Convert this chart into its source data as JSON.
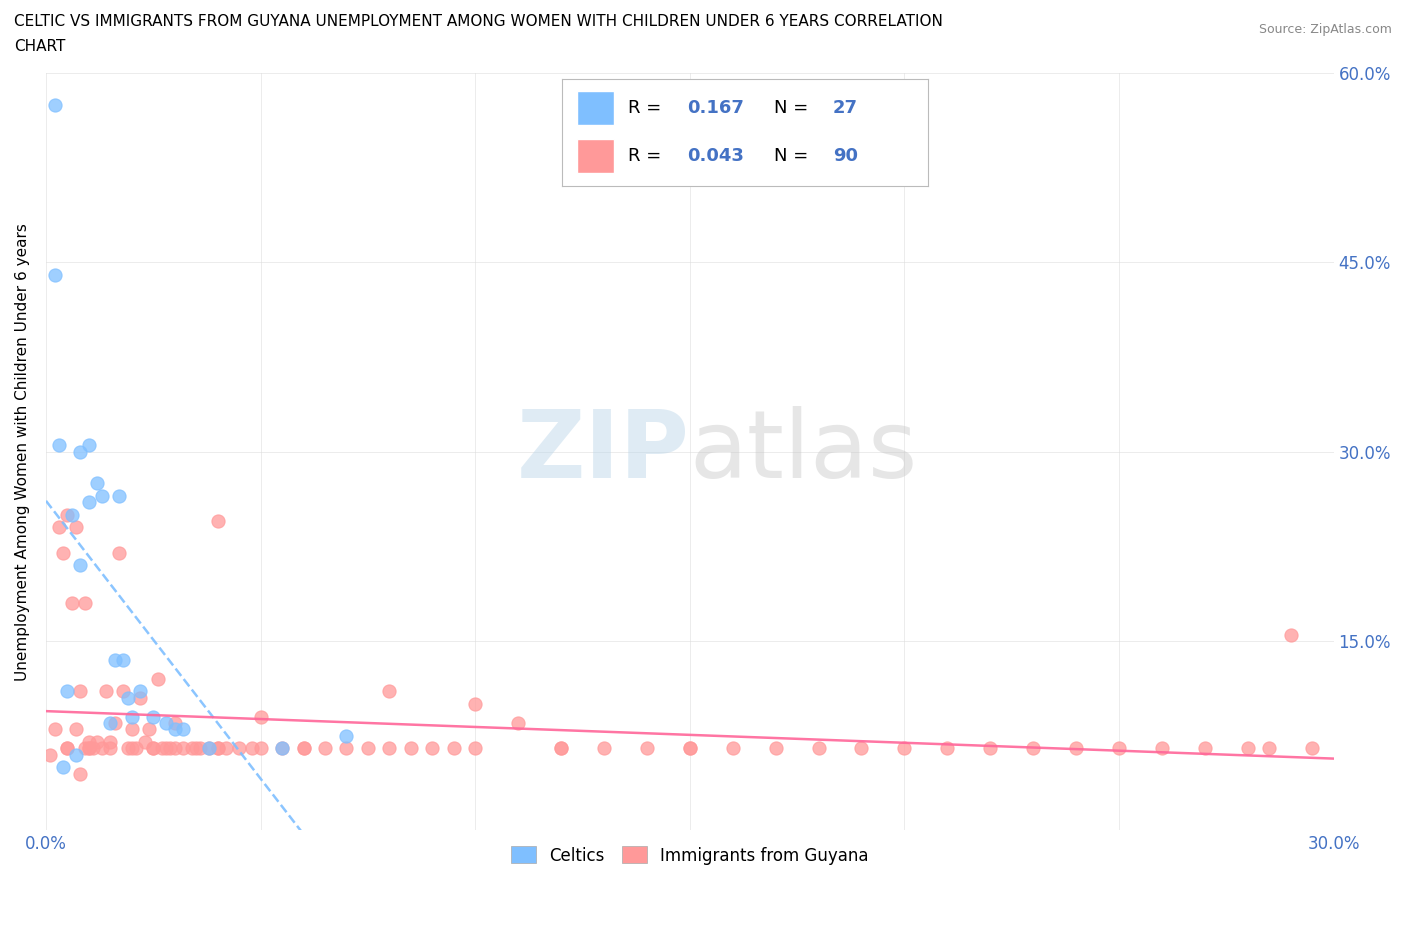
{
  "title_line1": "CELTIC VS IMMIGRANTS FROM GUYANA UNEMPLOYMENT AMONG WOMEN WITH CHILDREN UNDER 6 YEARS CORRELATION",
  "title_line2": "CHART",
  "source": "Source: ZipAtlas.com",
  "ylabel": "Unemployment Among Women with Children Under 6 years",
  "xlim": [
    0.0,
    0.3
  ],
  "ylim": [
    0.0,
    0.6
  ],
  "xticks": [
    0.0,
    0.05,
    0.1,
    0.15,
    0.2,
    0.25,
    0.3
  ],
  "yticks": [
    0.0,
    0.15,
    0.3,
    0.45,
    0.6
  ],
  "celtics_color": "#7fbfff",
  "guyana_color": "#ff9999",
  "trend_blue": "#7fbfff",
  "trend_pink": "#ff6699",
  "celtics_R": "0.167",
  "celtics_N": "27",
  "guyana_R": "0.043",
  "guyana_N": "90",
  "watermark_zip": "ZIP",
  "watermark_atlas": "atlas",
  "celtics_x": [
    0.002,
    0.002,
    0.003,
    0.005,
    0.006,
    0.007,
    0.008,
    0.008,
    0.01,
    0.01,
    0.012,
    0.013,
    0.015,
    0.016,
    0.017,
    0.018,
    0.019,
    0.02,
    0.022,
    0.025,
    0.028,
    0.03,
    0.032,
    0.038,
    0.055,
    0.07,
    0.004
  ],
  "celtics_y": [
    0.575,
    0.44,
    0.305,
    0.11,
    0.25,
    0.06,
    0.21,
    0.3,
    0.26,
    0.305,
    0.275,
    0.265,
    0.085,
    0.135,
    0.265,
    0.135,
    0.105,
    0.09,
    0.11,
    0.09,
    0.085,
    0.08,
    0.08,
    0.065,
    0.065,
    0.075,
    0.05
  ],
  "guyana_x": [
    0.001,
    0.002,
    0.003,
    0.004,
    0.005,
    0.005,
    0.006,
    0.007,
    0.007,
    0.008,
    0.008,
    0.009,
    0.009,
    0.01,
    0.01,
    0.011,
    0.012,
    0.013,
    0.014,
    0.015,
    0.016,
    0.017,
    0.018,
    0.019,
    0.02,
    0.021,
    0.022,
    0.023,
    0.024,
    0.025,
    0.026,
    0.027,
    0.028,
    0.029,
    0.03,
    0.032,
    0.034,
    0.036,
    0.038,
    0.04,
    0.042,
    0.045,
    0.048,
    0.05,
    0.055,
    0.06,
    0.065,
    0.07,
    0.075,
    0.08,
    0.085,
    0.09,
    0.095,
    0.1,
    0.11,
    0.12,
    0.13,
    0.14,
    0.15,
    0.16,
    0.18,
    0.2,
    0.22,
    0.24,
    0.26,
    0.28,
    0.29,
    0.04,
    0.06,
    0.08,
    0.1,
    0.12,
    0.15,
    0.17,
    0.19,
    0.21,
    0.23,
    0.25,
    0.27,
    0.285,
    0.295,
    0.005,
    0.01,
    0.015,
    0.02,
    0.025,
    0.03,
    0.035,
    0.04,
    0.05
  ],
  "guyana_y": [
    0.06,
    0.08,
    0.24,
    0.22,
    0.25,
    0.065,
    0.18,
    0.08,
    0.24,
    0.045,
    0.11,
    0.065,
    0.18,
    0.065,
    0.07,
    0.065,
    0.07,
    0.065,
    0.11,
    0.07,
    0.085,
    0.22,
    0.11,
    0.065,
    0.08,
    0.065,
    0.105,
    0.07,
    0.08,
    0.065,
    0.12,
    0.065,
    0.065,
    0.065,
    0.085,
    0.065,
    0.065,
    0.065,
    0.065,
    0.065,
    0.065,
    0.065,
    0.065,
    0.09,
    0.065,
    0.065,
    0.065,
    0.065,
    0.065,
    0.065,
    0.065,
    0.065,
    0.065,
    0.1,
    0.085,
    0.065,
    0.065,
    0.065,
    0.065,
    0.065,
    0.065,
    0.065,
    0.065,
    0.065,
    0.065,
    0.065,
    0.155,
    0.245,
    0.065,
    0.11,
    0.065,
    0.065,
    0.065,
    0.065,
    0.065,
    0.065,
    0.065,
    0.065,
    0.065,
    0.065,
    0.065,
    0.065,
    0.065,
    0.065,
    0.065,
    0.065,
    0.065,
    0.065,
    0.065,
    0.065
  ]
}
